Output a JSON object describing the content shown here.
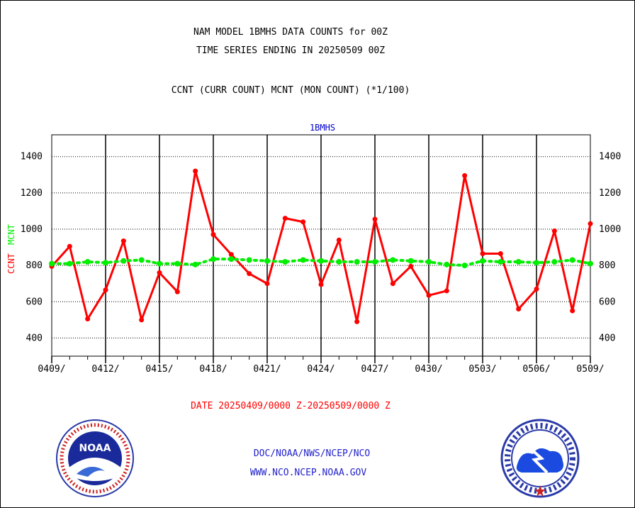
{
  "header": {
    "title_line1": "NAM MODEL 1BMHS DATA COUNTS for 00Z",
    "title_line2": "TIME SERIES ENDING IN 20250509 00Z",
    "subtitle": "CCNT (CURR COUNT) MCNT (MON COUNT) (*1/100)"
  },
  "footer": {
    "date_range": "DATE 20250409/0000 Z-20250509/0000 Z",
    "org_line": "DOC/NOAA/NWS/NCEP/NCO",
    "url_line": "WWW.NCO.NCEP.NOAA.GOV",
    "noaa_logo_text": "NOAA",
    "nws_logo_text": "NATIONAL WEATHER SERVICE"
  },
  "colors": {
    "ccnt": "#ff0000",
    "mcnt": "#00ee00",
    "panel_title": "#0000cc",
    "footer_link": "#2222cc"
  },
  "chart_data": {
    "type": "line",
    "title": "1BMHS",
    "ylabel_ccnt": "CCNT",
    "ylabel_mcnt": "MCNT",
    "ylim": [
      300,
      1520
    ],
    "yticks": [
      400,
      600,
      800,
      1000,
      1200,
      1400
    ],
    "x_tick_labels": [
      "0409/",
      "0412/",
      "0415/",
      "0418/",
      "0421/",
      "0424/",
      "0427/",
      "0430/",
      "0503/",
      "0506/",
      "0509/"
    ],
    "x": [
      "0409",
      "0410",
      "0411",
      "0412",
      "0413",
      "0414",
      "0415",
      "0416",
      "0417",
      "0418",
      "0419",
      "0420",
      "0421",
      "0422",
      "0423",
      "0424",
      "0425",
      "0426",
      "0427",
      "0428",
      "0429",
      "0430",
      "0501",
      "0502",
      "0503",
      "0504",
      "0505",
      "0506",
      "0507",
      "0508",
      "0509"
    ],
    "grid": true,
    "series": [
      {
        "name": "CCNT",
        "style": "solid",
        "values": [
          795,
          905,
          505,
          665,
          935,
          500,
          760,
          655,
          1320,
          970,
          860,
          755,
          700,
          1060,
          1040,
          695,
          940,
          490,
          1055,
          700,
          795,
          635,
          660,
          1295,
          865,
          865,
          560,
          670,
          990,
          550,
          1030
        ]
      },
      {
        "name": "MCNT",
        "style": "dotted",
        "values": [
          810,
          810,
          820,
          815,
          825,
          830,
          810,
          810,
          805,
          835,
          835,
          830,
          825,
          820,
          830,
          825,
          820,
          820,
          820,
          830,
          825,
          820,
          805,
          800,
          825,
          820,
          820,
          815,
          820,
          830,
          810
        ]
      }
    ]
  }
}
